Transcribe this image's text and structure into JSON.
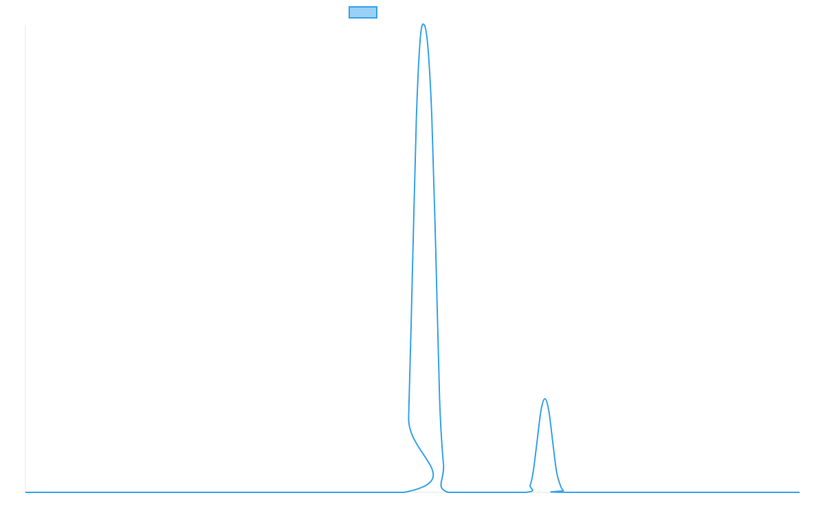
{
  "chart_data": {
    "type": "line",
    "title": "",
    "xlabel": "",
    "ylabel": "",
    "grid": false,
    "legend": {
      "position": "top-center",
      "entries": [
        {
          "name": "",
          "fill_color": "#9ad0f5",
          "stroke_color": "#36a2eb"
        }
      ]
    },
    "xlim": [
      0,
      100
    ],
    "ylim": [
      0,
      100
    ],
    "series": [
      {
        "name": "",
        "color": "#36a2eb",
        "x": [
          0,
          48.9,
          49.5,
          50.0,
          50.5,
          51.0,
          51.5,
          52.0,
          52.5,
          53.0,
          53.5,
          54.0,
          54.6,
          64.6,
          65.2,
          65.6,
          66.1,
          66.6,
          67.1,
          67.6,
          68.1,
          68.6,
          69.1,
          69.5,
          70.3,
          100
        ],
        "y": [
          0,
          0,
          16,
          48,
          80,
          97,
          100,
          95,
          80,
          52,
          20,
          6,
          0,
          0,
          1.5,
          4.5,
          11,
          17.5,
          20,
          17.5,
          11,
          4.5,
          1.5,
          0.4,
          0,
          0
        ]
      }
    ]
  }
}
